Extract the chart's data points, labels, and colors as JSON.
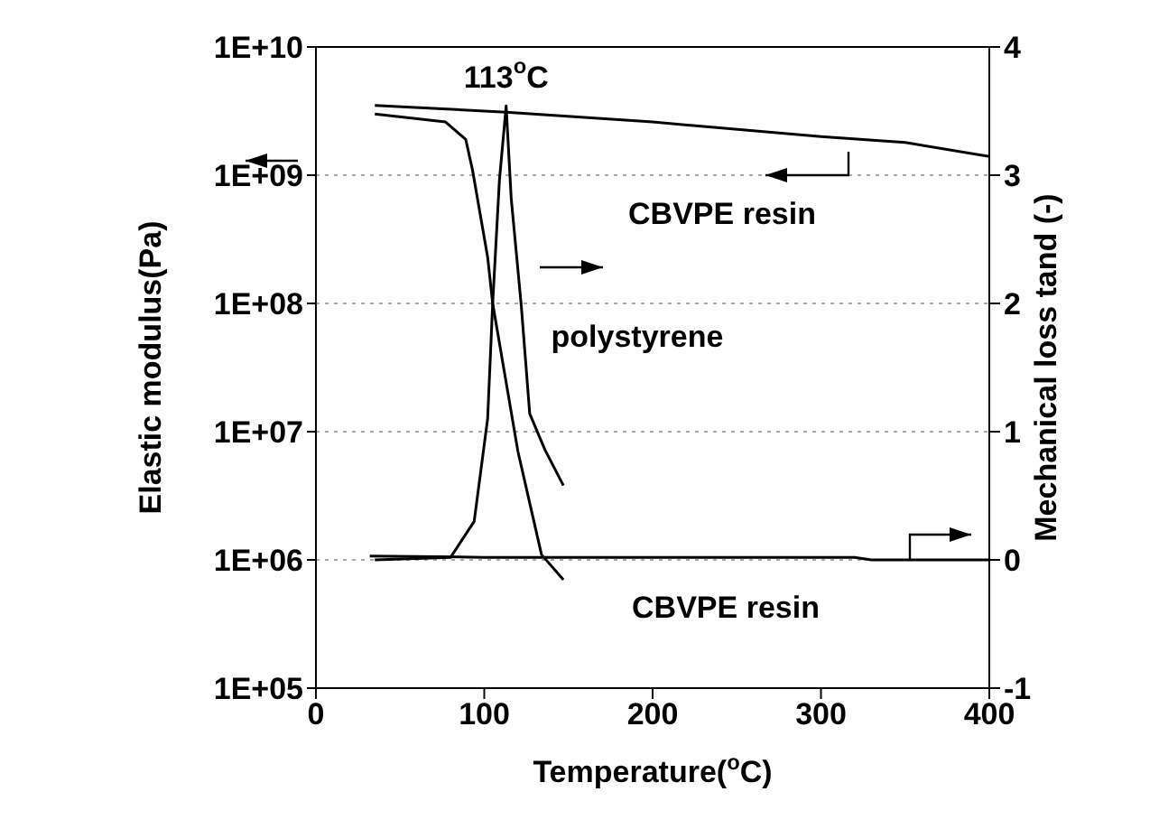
{
  "chart_data": {
    "type": "line",
    "xlabel": "Temperature($^{o}$C)",
    "ylabel": "Elastic modulus(Pa)",
    "y2label": "Mechanical loss tand (-)",
    "xlim": [
      0,
      400
    ],
    "xticks": [
      0,
      100,
      200,
      300,
      400
    ],
    "ylim": [
      100000,
      10000000000
    ],
    "yticks": [
      {
        "value": 100000,
        "label": "1E+05"
      },
      {
        "value": 1000000,
        "label": "1E+06"
      },
      {
        "value": 10000000,
        "label": "1E+07"
      },
      {
        "value": 100000000,
        "label": "1E+08"
      },
      {
        "value": 1000000000,
        "label": "1E+09"
      },
      {
        "value": 10000000000,
        "label": "1E+10"
      }
    ],
    "y2lim": [
      -1,
      4
    ],
    "y2ticks": [
      -1,
      0,
      1,
      2,
      3,
      4
    ],
    "log": "y",
    "grid": "y",
    "legend": false,
    "marker": "none",
    "line_style": "solid",
    "series": [
      {
        "color": "#000000",
        "x": [
          35,
          113,
          200,
          300,
          350,
          400
        ],
        "values": [
          3500000000,
          3100000000,
          2600000000,
          2000000000,
          1800000000,
          1400000000
        ]
      },
      {
        "color": "#000000",
        "x": [
          35,
          77,
          89,
          93,
          102,
          105,
          120,
          134,
          147
        ],
        "values": [
          3000000000,
          2600000000,
          1900000000,
          1100000000,
          230000000,
          100000000,
          7000000,
          1100000,
          700000
        ]
      },
      {
        "color": "#000000",
        "axis": "y2",
        "x": [
          35,
          80,
          94,
          102,
          105,
          109,
          113,
          116,
          122,
          127,
          136,
          147
        ],
        "values": [
          0,
          0.02,
          0.3,
          1.1,
          2,
          2.96,
          3.54,
          2.82,
          1.98,
          1.14,
          0.86,
          0.58
        ]
      },
      {
        "color": "#000000",
        "axis": "y2",
        "x": [
          32,
          100,
          200,
          320,
          330,
          400
        ],
        "values": [
          0.03,
          0.02,
          0.02,
          0.02,
          0,
          0
        ]
      }
    ],
    "annotations": [
      {
        "text": "113$^{o}$C",
        "x": 113,
        "y": 3500000000
      },
      "CBVPE resin",
      "polystyrene",
      "CBVPE resin"
    ]
  }
}
